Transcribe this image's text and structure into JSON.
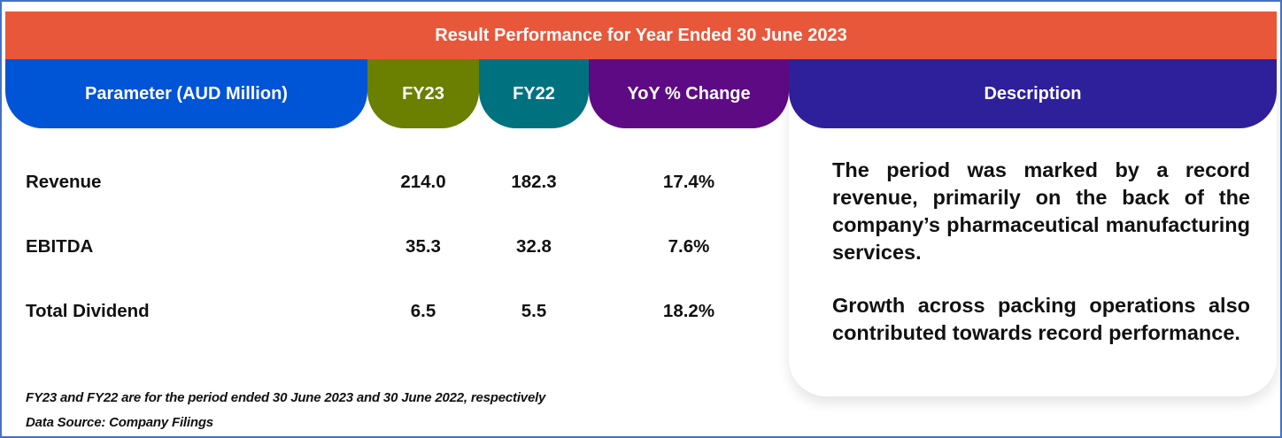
{
  "title": "Result Performance for Year Ended 30 June 2023",
  "columns": {
    "parameter": "Parameter (AUD Million)",
    "fy23": "FY23",
    "fy22": "FY22",
    "yoy": "YoY % Change",
    "description": "Description"
  },
  "rows": [
    {
      "label": "Revenue",
      "fy23": "214.0",
      "fy22": "182.3",
      "yoy": "17.4%"
    },
    {
      "label": "EBITDA",
      "fy23": "35.3",
      "fy22": "32.8",
      "yoy": "7.6%"
    },
    {
      "label": "Total Dividend",
      "fy23": "6.5",
      "fy22": "5.5",
      "yoy": "18.2%"
    }
  ],
  "description": {
    "paragraph1": "The period was marked by a record revenue, primarily on the back of the company’s pharmaceutical manufacturing services.",
    "paragraph2": "Growth across packing operations also contributed towards record performance."
  },
  "notes": {
    "period_note": "FY23 and FY22 are for the period ended 30 June 2023 and 30 June 2022, respectively",
    "source": "Data Source: Company Filings"
  },
  "colors": {
    "title_bar": "#e8573a",
    "parameter_header": "#0054d6",
    "fy23_header": "#6b7f00",
    "fy22_header": "#00727f",
    "yoy_header": "#5f0a85",
    "description_header": "#2e1f9a",
    "frame_border": "#4472c4"
  }
}
